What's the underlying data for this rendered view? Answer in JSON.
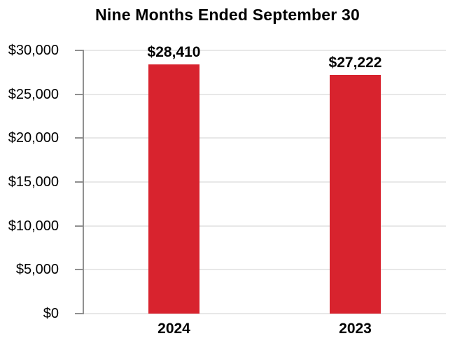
{
  "chart_data": {
    "type": "bar",
    "title": "Nine Months Ended September 30",
    "categories": [
      "2024",
      "2023"
    ],
    "values": [
      28410,
      27222
    ],
    "value_labels": [
      "$28,410",
      "$27,222"
    ],
    "xlabel": "",
    "ylabel": "",
    "ylim": [
      0,
      30000
    ],
    "ytick_step": 5000,
    "ytick_labels": [
      "$0",
      "$5,000",
      "$10,000",
      "$15,000",
      "$20,000",
      "$25,000",
      "$30,000"
    ],
    "grid": true,
    "legend": false
  },
  "colors": {
    "bar": "#D8232E",
    "axis": "#909090",
    "gridline": "#E8E8E8",
    "text": "#000000",
    "background": "#FFFFFF"
  }
}
